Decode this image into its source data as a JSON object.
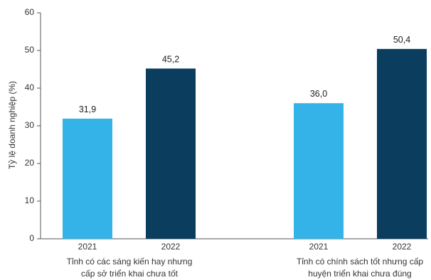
{
  "chart_data": {
    "type": "bar",
    "ylabel": "Tỷ lệ doanh nghiệp (%)",
    "xlabel": "",
    "ylim": [
      0,
      60
    ],
    "yticks": [
      0,
      10,
      20,
      30,
      40,
      50,
      60
    ],
    "grid": false,
    "colors": {
      "2021": "#33b3e8",
      "2022": "#0b3d5e"
    },
    "groups": [
      {
        "label_lines": [
          "Tỉnh có các sáng kiến hay nhưng",
          "cấp sở triển khai chưa tốt"
        ],
        "bars": [
          {
            "year": "2021",
            "value": 31.9,
            "label": "31,9"
          },
          {
            "year": "2022",
            "value": 45.2,
            "label": "45,2"
          }
        ]
      },
      {
        "label_lines": [
          "Tỉnh có chính sách tốt nhưng cấp",
          "huyện triển khai chưa đúng"
        ],
        "bars": [
          {
            "year": "2021",
            "value": 36.0,
            "label": "36,0"
          },
          {
            "year": "2022",
            "value": 50.4,
            "label": "50,4"
          }
        ]
      }
    ]
  }
}
